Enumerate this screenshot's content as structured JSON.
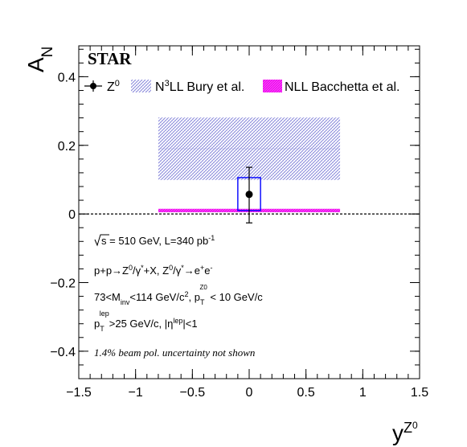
{
  "chart_data": {
    "type": "scatter",
    "experiment_label": "STAR",
    "ylabel": "A",
    "ylabel_sub": "N",
    "xlabel": "y",
    "xlabel_sup": "Z",
    "xlabel_sup2": "0",
    "xlim": [
      -1.5,
      1.5
    ],
    "ylim": [
      -0.48,
      0.49
    ],
    "x_ticks": [
      {
        "v": -1.5,
        "t": "−1.5"
      },
      {
        "v": -1,
        "t": "−1"
      },
      {
        "v": -0.5,
        "t": "−0.5"
      },
      {
        "v": 0,
        "t": "0"
      },
      {
        "v": 0.5,
        "t": "0.5"
      },
      {
        "v": 1,
        "t": "1"
      },
      {
        "v": 1.5,
        "t": "1.5"
      }
    ],
    "y_ticks": [
      {
        "v": -0.4,
        "t": "−0.4"
      },
      {
        "v": -0.2,
        "t": "−0.2"
      },
      {
        "v": 0,
        "t": "0"
      },
      {
        "v": 0.2,
        "t": "0.2"
      },
      {
        "v": 0.4,
        "t": "0.4"
      }
    ],
    "zero_line": true,
    "grid": false,
    "legend_position": "top",
    "legend": [
      {
        "id": "z0",
        "text": "Z",
        "sup": "0"
      },
      {
        "id": "n3ll",
        "pre": "N",
        "sup": "3",
        "post": "LL Bury et al."
      },
      {
        "id": "nll",
        "text": "NLL Bacchetta et al."
      }
    ],
    "series": [
      {
        "id": "z0",
        "x": 0,
        "y": 0.057,
        "stat_err": [
          0.083,
          0.079
        ],
        "sys_box": {
          "x": [
            -0.1,
            0.1
          ],
          "y": [
            0.01,
            0.106
          ]
        },
        "color": "#000000",
        "sys_color": "#0000ff"
      },
      {
        "id": "n3ll",
        "band": {
          "x": [
            -0.8,
            0.8
          ],
          "y": [
            0.099,
            0.281
          ]
        },
        "center": 0.19,
        "color": "#8c8cd9"
      },
      {
        "id": "nll",
        "band": {
          "x": [
            -0.8,
            0.8
          ],
          "y": [
            0.005,
            0.015
          ]
        },
        "color": "#ff00ff"
      }
    ],
    "annotations": {
      "line1": {
        "pre": "s = 510 GeV, L=340 pb",
        "sup": "-1"
      },
      "line2": {
        "p1": "p+p→Z",
        "s1": "0",
        "p2": "/γ",
        "s2": "*",
        "p3": "+X, Z",
        "s3": "0",
        "p4": "/γ",
        "s4": "*",
        "p5": "→e",
        "s5": "+",
        "p6": "e",
        "s6": "-"
      },
      "line3": {
        "p1": "73<M",
        "sub1": "inv",
        "p2": "<114 GeV/c",
        "sup2": "2",
        "p3": ", p",
        "sub3": "T",
        "sup3": "Z0",
        "p4": " < 10 GeV/c"
      },
      "line4": {
        "p1": "p",
        "sub1": "T",
        "sup1": "lep",
        "p2": ">25 GeV/c, |η",
        "sup2": "lep",
        "p3": "|<1"
      },
      "line5": "1.4% beam pol. uncertainty not shown"
    }
  }
}
